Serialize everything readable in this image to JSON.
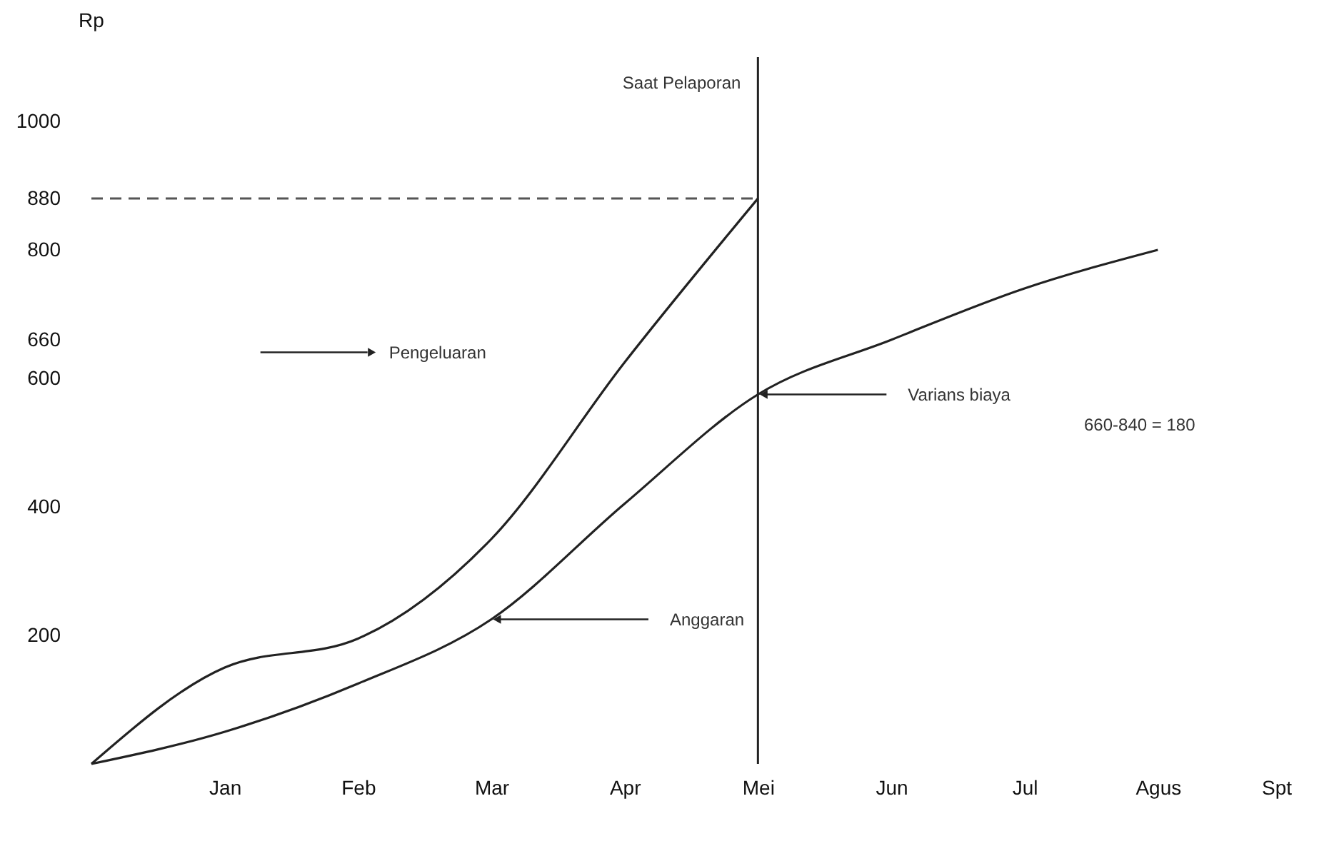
{
  "chart_data": {
    "type": "line",
    "ylabel": "Rp",
    "categories": [
      null,
      "Jan",
      "Feb",
      "Mar",
      "Apr",
      "Mei",
      "Jun",
      "Jul",
      "Agus",
      "Spt"
    ],
    "ylim": [
      0,
      1100
    ],
    "yticks": [
      200,
      400,
      600,
      660,
      800,
      880,
      1000
    ],
    "series": [
      {
        "name": "Pengeluaran",
        "color": "#222222",
        "values": [
          0,
          150,
          195,
          350,
          625,
          880,
          null,
          null,
          null,
          null
        ]
      },
      {
        "name": "Anggaran",
        "color": "#222222",
        "values": [
          0,
          50,
          125,
          225,
          405,
          575,
          660,
          740,
          800,
          null
        ]
      }
    ],
    "ref_lines": [
      {
        "axis": "x",
        "value": "Mei",
        "label": "Saat Pelaporan",
        "color": "#222222",
        "line_style": "solid"
      },
      {
        "axis": "y",
        "value": 880,
        "color": "#555555",
        "line_style": "dashed"
      }
    ],
    "annotations": [
      {
        "text": "Varians biaya",
        "x": "Mei",
        "y": 575
      },
      "660-840 = 180"
    ],
    "grid": false,
    "marker": "none",
    "line_style": "solid"
  }
}
